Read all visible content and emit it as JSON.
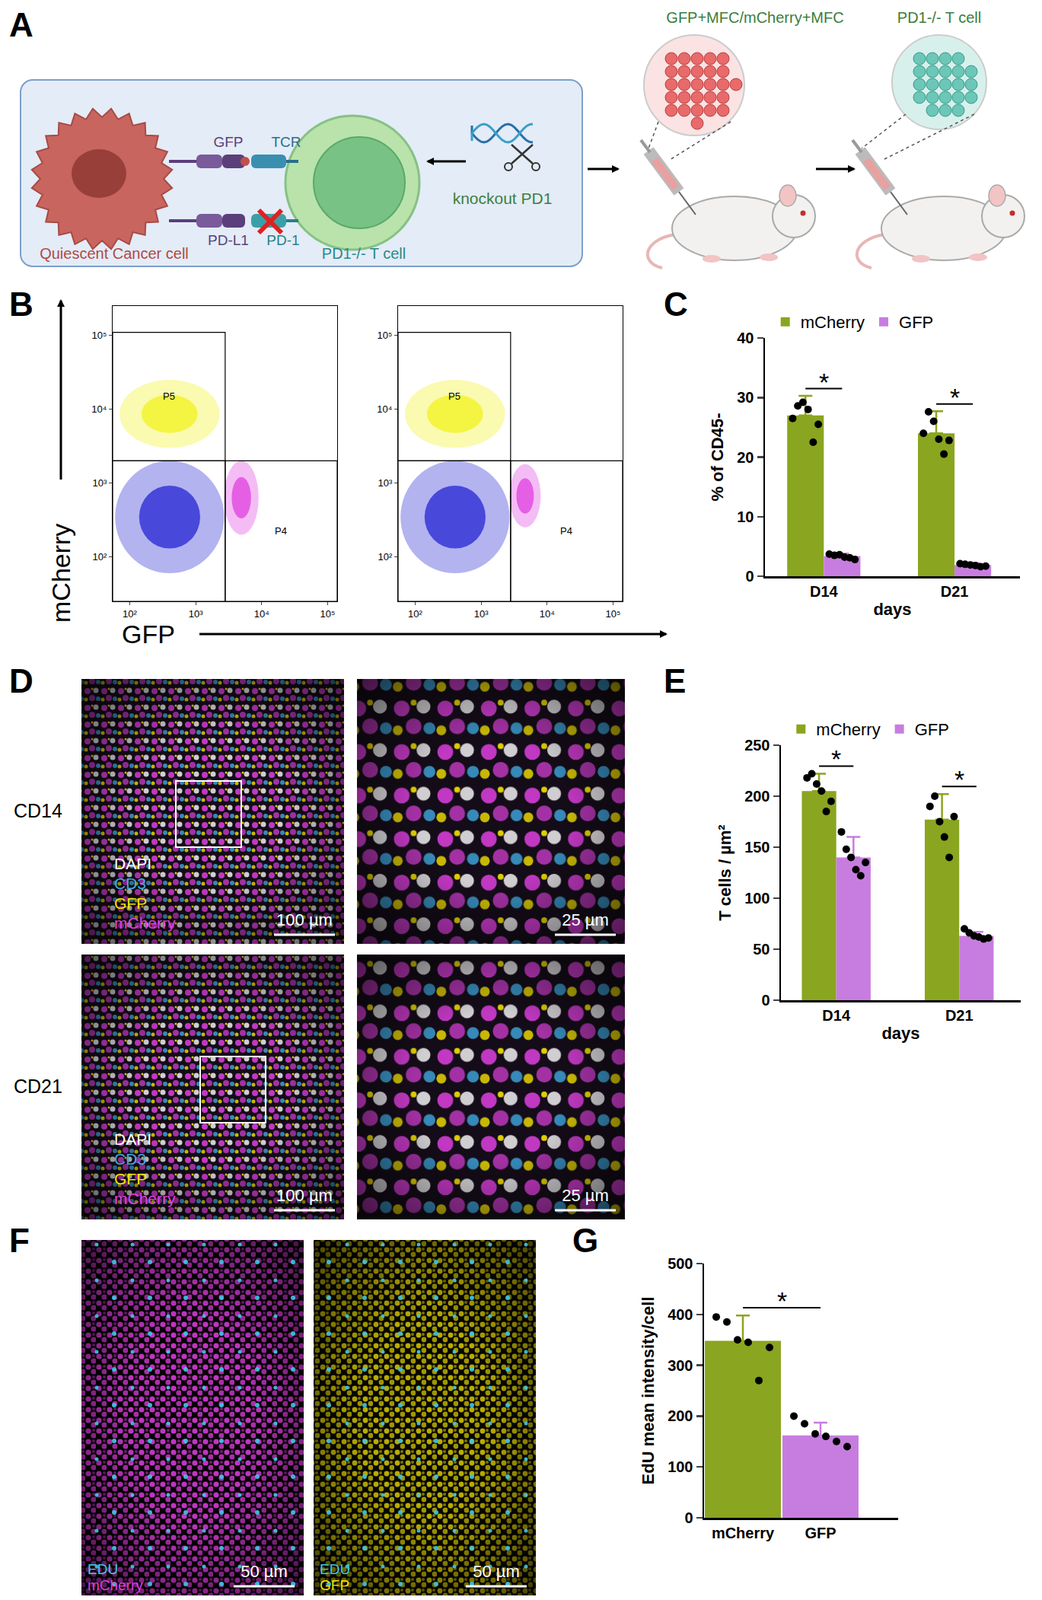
{
  "chart_data": [
    {
      "type": "scatter",
      "log": true,
      "xlim": [
        55,
        140000
      ],
      "ylim": [
        25,
        250000
      ],
      "xticks": [
        {
          "value": 100,
          "label": "10²"
        },
        {
          "value": 1000,
          "label": "10³"
        },
        {
          "value": 10000,
          "label": "10⁴"
        },
        {
          "value": 100000,
          "label": "10⁵"
        }
      ],
      "yticks": [
        {
          "value": 100,
          "label": "10²"
        },
        {
          "value": 1000,
          "label": "10³"
        },
        {
          "value": 10000,
          "label": "10⁴"
        },
        {
          "value": 100000,
          "label": "10⁵"
        }
      ],
      "gates": [
        {
          "name": "P5",
          "x": [
            55,
            2800
          ],
          "y": [
            2000,
            110000
          ]
        },
        {
          "x": [
            55,
            2800
          ],
          "y": [
            25,
            2000
          ]
        },
        {
          "name": "P4",
          "x": [
            2800,
            140000
          ],
          "y": [
            25,
            2000
          ]
        }
      ],
      "populations": [
        {
          "color": "#2424d4",
          "x": [
            60,
            2700
          ],
          "y": [
            60,
            2000
          ]
        },
        {
          "color": "#f2f21e",
          "x": [
            70,
            2300
          ],
          "y": [
            3000,
            25000
          ]
        },
        {
          "color": "#e040e0",
          "x": [
            2700,
            9000
          ],
          "y": [
            200,
            2000
          ]
        }
      ]
    },
    {
      "type": "scatter",
      "log": true,
      "xlim": [
        55,
        140000
      ],
      "ylim": [
        25,
        250000
      ],
      "xticks": [
        {
          "value": 100,
          "label": "10²"
        },
        {
          "value": 1000,
          "label": "10³"
        },
        {
          "value": 10000,
          "label": "10⁴"
        },
        {
          "value": 100000,
          "label": "10⁵"
        }
      ],
      "yticks": [
        {
          "value": 100,
          "label": "10²"
        },
        {
          "value": 1000,
          "label": "10³"
        },
        {
          "value": 10000,
          "label": "10⁴"
        },
        {
          "value": 100000,
          "label": "10⁵"
        }
      ],
      "gates": [
        {
          "name": "P5",
          "x": [
            55,
            2800
          ],
          "y": [
            2000,
            110000
          ]
        },
        {
          "x": [
            55,
            2800
          ],
          "y": [
            25,
            2000
          ]
        },
        {
          "name": "P4",
          "x": [
            2800,
            140000
          ],
          "y": [
            25,
            2000
          ]
        }
      ],
      "populations": [
        {
          "color": "#2424d4",
          "x": [
            60,
            2700
          ],
          "y": [
            60,
            2000
          ]
        },
        {
          "color": "#f2f21e",
          "x": [
            70,
            2300
          ],
          "y": [
            3000,
            25000
          ]
        },
        {
          "color": "#e040e0",
          "x": [
            2700,
            8000
          ],
          "y": [
            250,
            1800
          ]
        }
      ]
    },
    {
      "type": "bar",
      "ylabel": "% of CD45-",
      "xlabel": "days",
      "categories": [
        "D14",
        "D21"
      ],
      "series": [
        {
          "name": "mCherry",
          "color": "#8aa51f",
          "values": [
            27,
            24
          ],
          "errors": [
            3.3,
            3.7
          ],
          "points": [
            [
              26.5,
              28.6,
              29.2,
              28,
              22.5,
              25.5
            ],
            [
              24,
              27.6,
              26,
              23,
              20.5,
              22.8
            ]
          ]
        },
        {
          "name": "GFP",
          "color": "#c77ddf",
          "values": [
            3.4,
            1.9
          ],
          "errors": [
            0.4,
            0.3
          ],
          "points": [
            [
              3.7,
              3.5,
              3.6,
              3.2,
              3.1,
              2.8
            ],
            [
              2.1,
              2.0,
              1.9,
              1.8,
              1.6,
              1.7
            ]
          ]
        }
      ],
      "ylim": [
        0,
        40
      ],
      "yticks": [
        0,
        10,
        20,
        30,
        40
      ],
      "legend": "top",
      "annotations": [
        {
          "category": "D14",
          "text": "*"
        },
        {
          "category": "D21",
          "text": "*"
        }
      ]
    },
    {
      "type": "bar",
      "ylabel": "T cells / µm²",
      "xlabel": "days",
      "categories": [
        "D14",
        "D21"
      ],
      "series": [
        {
          "name": "mCherry",
          "color": "#8aa51f",
          "values": [
            205,
            177
          ],
          "errors": [
            17,
            25
          ],
          "points": [
            [
              218,
              222,
              212,
              205,
              185,
              195
            ],
            [
              190,
              200,
              175,
              160,
              140,
              180
            ]
          ]
        },
        {
          "name": "GFP",
          "color": "#c77ddf",
          "values": [
            140,
            63
          ],
          "errors": [
            20,
            4
          ],
          "points": [
            [
              165,
              148,
              140,
              128,
              122,
              135
            ],
            [
              70,
              66,
              63,
              62,
              60,
              61
            ]
          ]
        }
      ],
      "ylim": [
        0,
        250
      ],
      "yticks": [
        0,
        50,
        100,
        150,
        200,
        250
      ],
      "legend": "top",
      "annotations": [
        {
          "category": "D14",
          "text": "*"
        },
        {
          "category": "D21",
          "text": "*"
        }
      ]
    },
    {
      "type": "bar",
      "ylabel": "EdU mean intensity/cell",
      "categories": [
        "mCherry",
        "GFP"
      ],
      "values": [
        348,
        162
      ],
      "colors": [
        "#8aa51f",
        "#c77ddf"
      ],
      "errors": [
        50,
        25
      ],
      "points": [
        [
          395,
          385,
          350,
          345,
          270,
          335
        ],
        [
          200,
          185,
          165,
          160,
          150,
          140
        ]
      ],
      "ylim": [
        0,
        500
      ],
      "yticks": [
        0,
        100,
        200,
        300,
        400,
        500
      ],
      "annotations": [
        {
          "categories": [
            "mCherry",
            "GFP"
          ],
          "text": "*"
        }
      ]
    }
  ],
  "figure": {
    "panel_labels": [
      "A",
      "B",
      "C",
      "D",
      "E",
      "F",
      "G"
    ],
    "diagram": {
      "ligand_1": "GFP",
      "receptor_1": "TCR",
      "ligand_2": "PD-L1",
      "receptor_2": "PD-1",
      "cancer_cell": "Quiescent Cancer cell",
      "t_cell": "PD1-/- T cell",
      "editing": "knockout PD1",
      "injection_1": "GFP+MFC/mCherry+MFC",
      "injection_2": "PD1-/- T cell"
    },
    "flow_axes": {
      "x": "GFP",
      "y": "mCherry"
    },
    "images_D": {
      "rows": [
        "CD14",
        "CD21"
      ],
      "channels": [
        {
          "name": "DAPI",
          "color": "#ffffff"
        },
        {
          "name": "CD3",
          "color": "#3fa9e0"
        },
        {
          "name": "GFP",
          "color": "#f5e400"
        },
        {
          "name": "mCherry",
          "color": "#e040e0"
        }
      ],
      "scale_bars": [
        "100 µm",
        "25 µm"
      ]
    },
    "images_F": [
      {
        "channels": [
          {
            "name": "EDU",
            "color": "#3fc8e8"
          },
          {
            "name": "mCherry",
            "color": "#e040e0"
          }
        ],
        "scale_bar": "50 µm"
      },
      {
        "channels": [
          {
            "name": "EDU",
            "color": "#3fc8e8"
          },
          {
            "name": "GFP",
            "color": "#f5e400"
          }
        ],
        "scale_bar": "50 µm"
      }
    ]
  }
}
